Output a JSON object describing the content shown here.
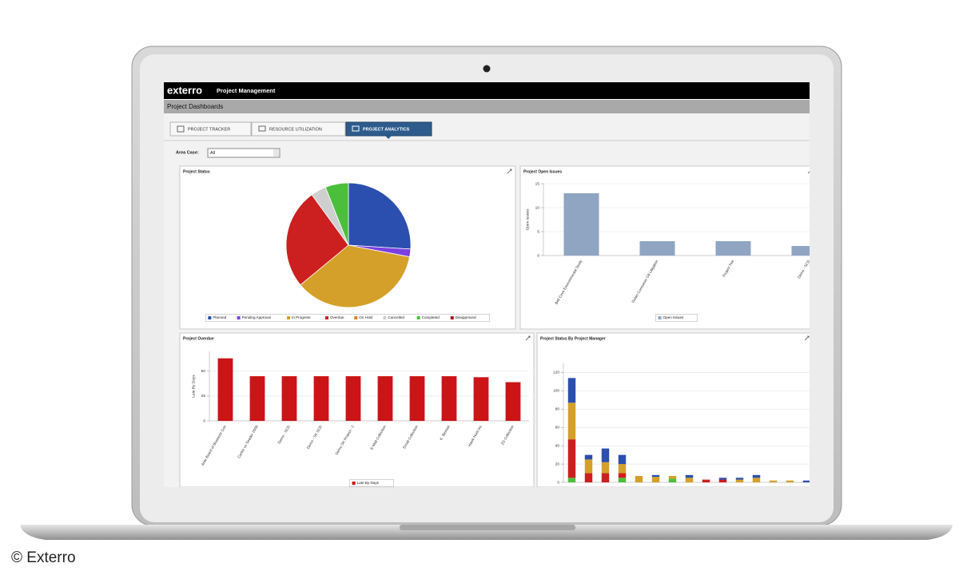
{
  "header": {
    "logo": "exterro",
    "title": "Project Management",
    "subtitle": "Project Dashboards"
  },
  "tabs": [
    "PROJECT TRACKER",
    "RESOURCE UTILIZATION",
    "PROJECT ANALYTICS"
  ],
  "filter": {
    "label": "Area Case:",
    "value": "All"
  },
  "watermark": "© Exterro",
  "chart_data": [
    {
      "type": "pie",
      "title": "Project Status",
      "categories": [
        "Planned",
        "Pending Approval",
        "In Progress",
        "Overdue",
        "On Hold",
        "Cancelled",
        "Completed",
        "Disapproved"
      ],
      "values": [
        26,
        2,
        36,
        26,
        0,
        4,
        6,
        0
      ],
      "colors": [
        "#2b4fae",
        "#7b3fe0",
        "#d4a02a",
        "#cc1f1f",
        "#e2832a",
        "#cfcfcf",
        "#4bbf3c",
        "#a01818"
      ],
      "legend": "bottom"
    },
    {
      "type": "bar",
      "title": "Project Open Issues",
      "ylabel": "Open Issues",
      "categories": [
        "Bell Cove Environmental Study",
        "Dolan Consumer Oil Litigation",
        "Project Tisk",
        "Demo - SCD"
      ],
      "series": [
        {
          "name": "Open Issues",
          "color": "#8fa5c2",
          "values": [
            13,
            3,
            3,
            2
          ]
        }
      ],
      "ylim": [
        0,
        15
      ],
      "yticks": [
        0,
        5,
        10,
        15
      ],
      "grid": true,
      "legend": "bottom"
    },
    {
      "type": "bar",
      "title": "Project Overdue",
      "ylabel": "Late By Days",
      "categories": [
        "Ante Board of Business Con",
        "Carlos vs Seeder 2009",
        "Demo - SCD",
        "Demo - SK SCD",
        "Demo SK Project - 2",
        "E-Mail Collection",
        "Email Collection",
        "K. Bemick",
        "Hawk Hunt Inc",
        "ZS Collection"
      ],
      "series": [
        {
          "name": "Late By Days",
          "color": "#cc1417",
          "values": [
            63,
            45,
            45,
            45,
            45,
            45,
            45,
            45,
            44,
            39
          ]
        }
      ],
      "ylim": [
        0,
        70
      ],
      "yticks": [
        0,
        25,
        50
      ],
      "grid": true,
      "legend": "bottom"
    },
    {
      "type": "stacked_bar",
      "title": "Project Status By Project Manager",
      "categories": [
        null,
        null,
        null,
        null,
        null,
        null,
        null,
        null,
        null,
        null,
        null,
        null,
        null,
        null,
        null
      ],
      "series": [
        {
          "color": "#4bbf3c",
          "values": [
            5,
            0,
            0,
            5,
            0,
            0,
            4,
            0,
            0,
            0,
            0,
            0,
            0,
            0,
            0
          ]
        },
        {
          "color": "#cc1f1f",
          "values": [
            42,
            10,
            10,
            5,
            0,
            0,
            0,
            0,
            3,
            3,
            0,
            0,
            0,
            0,
            0
          ]
        },
        {
          "color": "#d4a02a",
          "values": [
            40,
            15,
            12,
            10,
            7,
            6,
            3,
            5,
            0,
            0,
            3,
            5,
            2,
            2,
            0
          ]
        },
        {
          "color": "#2b4fae",
          "values": [
            27,
            5,
            15,
            10,
            0,
            2,
            0,
            3,
            0,
            2,
            2,
            3,
            0,
            0,
            2
          ]
        }
      ],
      "ylim": [
        0,
        130
      ],
      "yticks": [
        0,
        20,
        40,
        60,
        80,
        100,
        120
      ],
      "grid": true
    }
  ]
}
